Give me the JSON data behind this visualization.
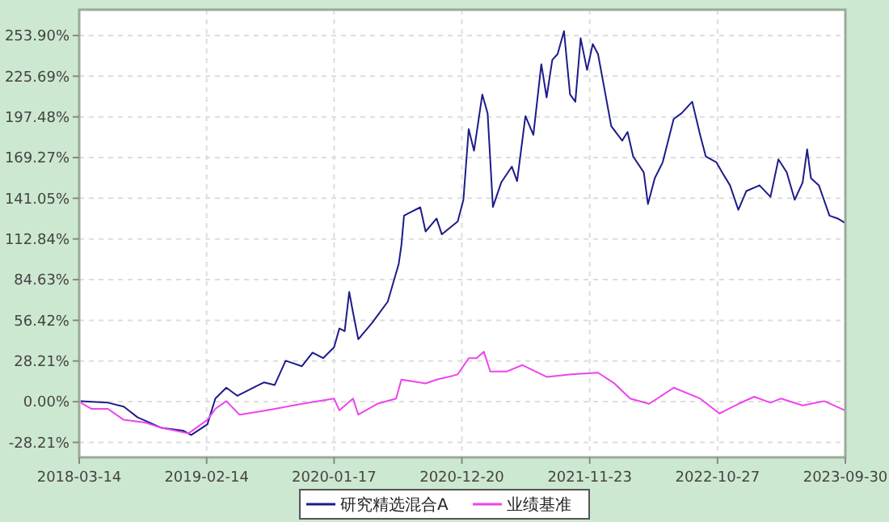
{
  "chart_data": {
    "type": "line",
    "xlim": [
      "2018-03-14",
      "2023-09-30"
    ],
    "ylim": [
      -38.6,
      271.8
    ],
    "xticks": [
      "2018-03-14",
      "2019-02-14",
      "2020-01-17",
      "2020-12-20",
      "2021-11-23",
      "2022-10-27",
      "2023-09-30"
    ],
    "yticks": [
      {
        "value": -28.21,
        "label": "-28.21%"
      },
      {
        "value": 0,
        "label": "0.00%"
      },
      {
        "value": 28.21,
        "label": "28.21%"
      },
      {
        "value": 56.42,
        "label": "56.42%"
      },
      {
        "value": 84.63,
        "label": "84.63%"
      },
      {
        "value": 112.84,
        "label": "112.84%"
      },
      {
        "value": 141.05,
        "label": "141.05%"
      },
      {
        "value": 169.27,
        "label": "169.27%"
      },
      {
        "value": 197.48,
        "label": "197.48%"
      },
      {
        "value": 225.69,
        "label": "225.69%"
      },
      {
        "value": 253.9,
        "label": "253.90%"
      }
    ],
    "grid": true,
    "legend": "bottom",
    "line_style": "solid",
    "marker": "none",
    "series": [
      {
        "name": "研究精选混合A",
        "color": "#1c1c8a",
        "x": [
          "2018-03-18",
          "2018-05-29",
          "2018-07-10",
          "2018-08-15",
          "2018-10-18",
          "2018-12-14",
          "2019-01-04",
          "2019-02-16",
          "2019-03-09",
          "2019-04-07",
          "2019-05-06",
          "2019-06-17",
          "2019-07-16",
          "2019-08-13",
          "2019-09-11",
          "2019-10-24",
          "2019-11-21",
          "2019-12-19",
          "2020-01-17",
          "2020-01-31",
          "2020-02-14",
          "2020-02-26",
          "2020-03-07",
          "2020-03-21",
          "2020-04-26",
          "2020-06-07",
          "2020-07-06",
          "2020-07-13",
          "2020-07-20",
          "2020-08-03",
          "2020-09-01",
          "2020-09-15",
          "2020-10-14",
          "2020-10-28",
          "2020-12-09",
          "2020-12-24",
          "2021-01-07",
          "2021-01-21",
          "2021-02-12",
          "2021-02-26",
          "2021-03-12",
          "2021-04-03",
          "2021-05-01",
          "2021-05-15",
          "2021-06-06",
          "2021-06-27",
          "2021-07-18",
          "2021-08-01",
          "2021-08-16",
          "2021-08-30",
          "2021-09-16",
          "2021-10-02",
          "2021-10-16",
          "2021-10-30",
          "2021-11-16",
          "2021-12-01",
          "2021-12-15",
          "2021-12-29",
          "2022-01-19",
          "2022-02-17",
          "2022-03-03",
          "2022-03-18",
          "2022-04-15",
          "2022-04-26",
          "2022-05-14",
          "2022-06-04",
          "2022-07-03",
          "2022-07-24",
          "2022-08-21",
          "2022-09-11",
          "2022-09-26",
          "2022-10-24",
          "2022-11-08",
          "2022-11-29",
          "2022-12-21",
          "2023-01-11",
          "2023-02-15",
          "2023-03-16",
          "2023-04-06",
          "2023-04-28",
          "2023-05-19",
          "2023-06-09",
          "2023-06-21",
          "2023-07-01",
          "2023-07-22",
          "2023-08-19",
          "2023-09-10",
          "2023-09-29"
        ],
        "values": [
          0.4,
          -0.7,
          -3.4,
          -10.8,
          -18.2,
          -20.1,
          -23.1,
          -15.7,
          2.2,
          9.7,
          4.1,
          9.7,
          13.4,
          11.6,
          28.4,
          24.6,
          34.0,
          30.2,
          37.7,
          50.8,
          48.9,
          76.1,
          62.0,
          43.3,
          54.5,
          69.4,
          95.6,
          108.6,
          129,
          131,
          134.8,
          118,
          127,
          116,
          125,
          140,
          189,
          174,
          213,
          200,
          135,
          152,
          163,
          153,
          198,
          185,
          234,
          211,
          237,
          241,
          257,
          213,
          208,
          252,
          230,
          248,
          241,
          221,
          191,
          181,
          187,
          170,
          159,
          137,
          155,
          166,
          196,
          200,
          208,
          185,
          170,
          166,
          159,
          150,
          133,
          146,
          150,
          142,
          168,
          159,
          140,
          152,
          175,
          155,
          150,
          129,
          127,
          124
        ]
      },
      {
        "name": "业绩基准",
        "color": "#ee44ee",
        "x": [
          "2018-03-18",
          "2018-04-16",
          "2018-05-29",
          "2018-07-10",
          "2018-09-05",
          "2018-10-18",
          "2018-12-28",
          "2019-02-16",
          "2019-03-09",
          "2019-04-07",
          "2019-05-12",
          "2019-07-01",
          "2019-08-13",
          "2019-10-24",
          "2020-01-17",
          "2020-01-31",
          "2020-03-07",
          "2020-03-21",
          "2020-05-10",
          "2020-06-29",
          "2020-07-13",
          "2020-09-15",
          "2020-10-14",
          "2020-11-25",
          "2020-12-09",
          "2021-01-07",
          "2021-01-28",
          "2021-02-16",
          "2021-03-05",
          "2021-04-17",
          "2021-05-29",
          "2021-08-01",
          "2021-10-05",
          "2021-12-15",
          "2022-01-27",
          "2022-03-10",
          "2022-04-29",
          "2022-07-03",
          "2022-09-11",
          "2022-11-01",
          "2022-12-21",
          "2023-02-01",
          "2023-03-16",
          "2023-04-13",
          "2023-06-09",
          "2023-08-05",
          "2023-09-29"
        ],
        "values": [
          -0.7,
          -5,
          -5,
          -12.6,
          -14.5,
          -18.2,
          -22,
          -12.6,
          -5,
          0.4,
          -9,
          -7,
          -5,
          -1.5,
          2.2,
          -6,
          2.2,
          -9,
          -1.5,
          2.2,
          15.3,
          12.7,
          15.3,
          17.9,
          19,
          30.2,
          30.2,
          34.7,
          20.9,
          20.9,
          25.4,
          17.2,
          19,
          20.1,
          12.7,
          2.2,
          -1.5,
          9.7,
          2.2,
          -8.2,
          -1.5,
          3.4,
          -0.7,
          2.2,
          -2.6,
          0.4,
          -6
        ]
      }
    ]
  }
}
